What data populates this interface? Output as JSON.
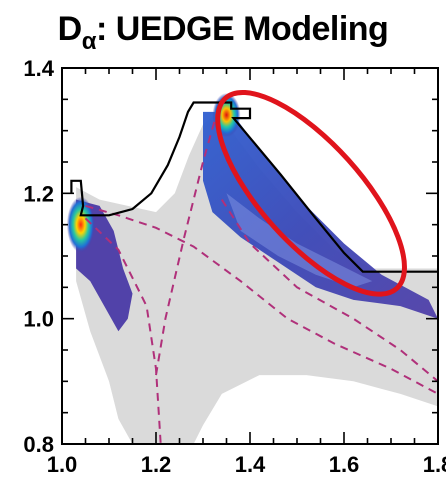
{
  "chart_data": {
    "type": "heatmap",
    "title": {
      "main": "D",
      "subscript": "α",
      "rest": ": UEDGE Modeling"
    },
    "xlabel": "",
    "ylabel": "",
    "xlim": [
      1.0,
      1.8
    ],
    "ylim": [
      0.8,
      1.4
    ],
    "xticks": [
      "1.0",
      "1.2",
      "1.4",
      "1.6",
      "1.8"
    ],
    "yticks": [
      "0.8",
      "1.0",
      "1.2",
      "1.4"
    ],
    "grid": false,
    "colors": {
      "grid_region": "#dadada",
      "emission_low": "#4a3aa6",
      "emission_mid": "#1f6fd6",
      "emission_high": "#e01010",
      "separatrix": "#b0307a",
      "wall": "#000000",
      "annotation": "#e0141c"
    },
    "wall_outline": [
      [
        1.02,
        1.2
      ],
      [
        1.02,
        1.22
      ],
      [
        1.04,
        1.22
      ],
      [
        1.045,
        1.18
      ],
      [
        1.04,
        1.165
      ],
      [
        1.1,
        1.165
      ],
      [
        1.15,
        1.175
      ],
      [
        1.19,
        1.2
      ],
      [
        1.225,
        1.245
      ],
      [
        1.25,
        1.29
      ],
      [
        1.268,
        1.33
      ],
      [
        1.28,
        1.345
      ],
      [
        1.36,
        1.345
      ],
      [
        1.36,
        1.335
      ],
      [
        1.4,
        1.335
      ],
      [
        1.4,
        1.32
      ],
      [
        1.365,
        1.32
      ],
      [
        1.465,
        1.23
      ],
      [
        1.54,
        1.16
      ],
      [
        1.6,
        1.105
      ],
      [
        1.64,
        1.075
      ],
      [
        1.8,
        1.075
      ]
    ],
    "separatrix_curves": [
      [
        [
          1.05,
          1.18
        ],
        [
          1.12,
          1.165
        ],
        [
          1.2,
          1.145
        ],
        [
          1.28,
          1.115
        ],
        [
          1.38,
          1.06
        ],
        [
          1.48,
          1.0
        ],
        [
          1.58,
          0.96
        ],
        [
          1.7,
          0.92
        ],
        [
          1.8,
          0.88
        ]
      ],
      [
        [
          1.05,
          1.16
        ],
        [
          1.12,
          1.11
        ],
        [
          1.18,
          1.02
        ],
        [
          1.2,
          0.92
        ],
        [
          1.21,
          0.8
        ]
      ],
      [
        [
          1.2,
          0.91
        ],
        [
          1.22,
          1.0
        ],
        [
          1.26,
          1.13
        ],
        [
          1.3,
          1.25
        ],
        [
          1.33,
          1.33
        ]
      ],
      [
        [
          1.34,
          1.19
        ],
        [
          1.4,
          1.12
        ],
        [
          1.5,
          1.05
        ],
        [
          1.62,
          1.0
        ],
        [
          1.72,
          0.95
        ],
        [
          1.8,
          0.9
        ]
      ]
    ],
    "emission_peaks": [
      {
        "x": 1.04,
        "y": 1.15,
        "level": "high"
      },
      {
        "x": 1.35,
        "y": 1.325,
        "level": "high"
      }
    ],
    "annotation": {
      "shape": "ellipse",
      "center": [
        1.53,
        1.2
      ],
      "note": "circled outer divertor emission region"
    }
  }
}
